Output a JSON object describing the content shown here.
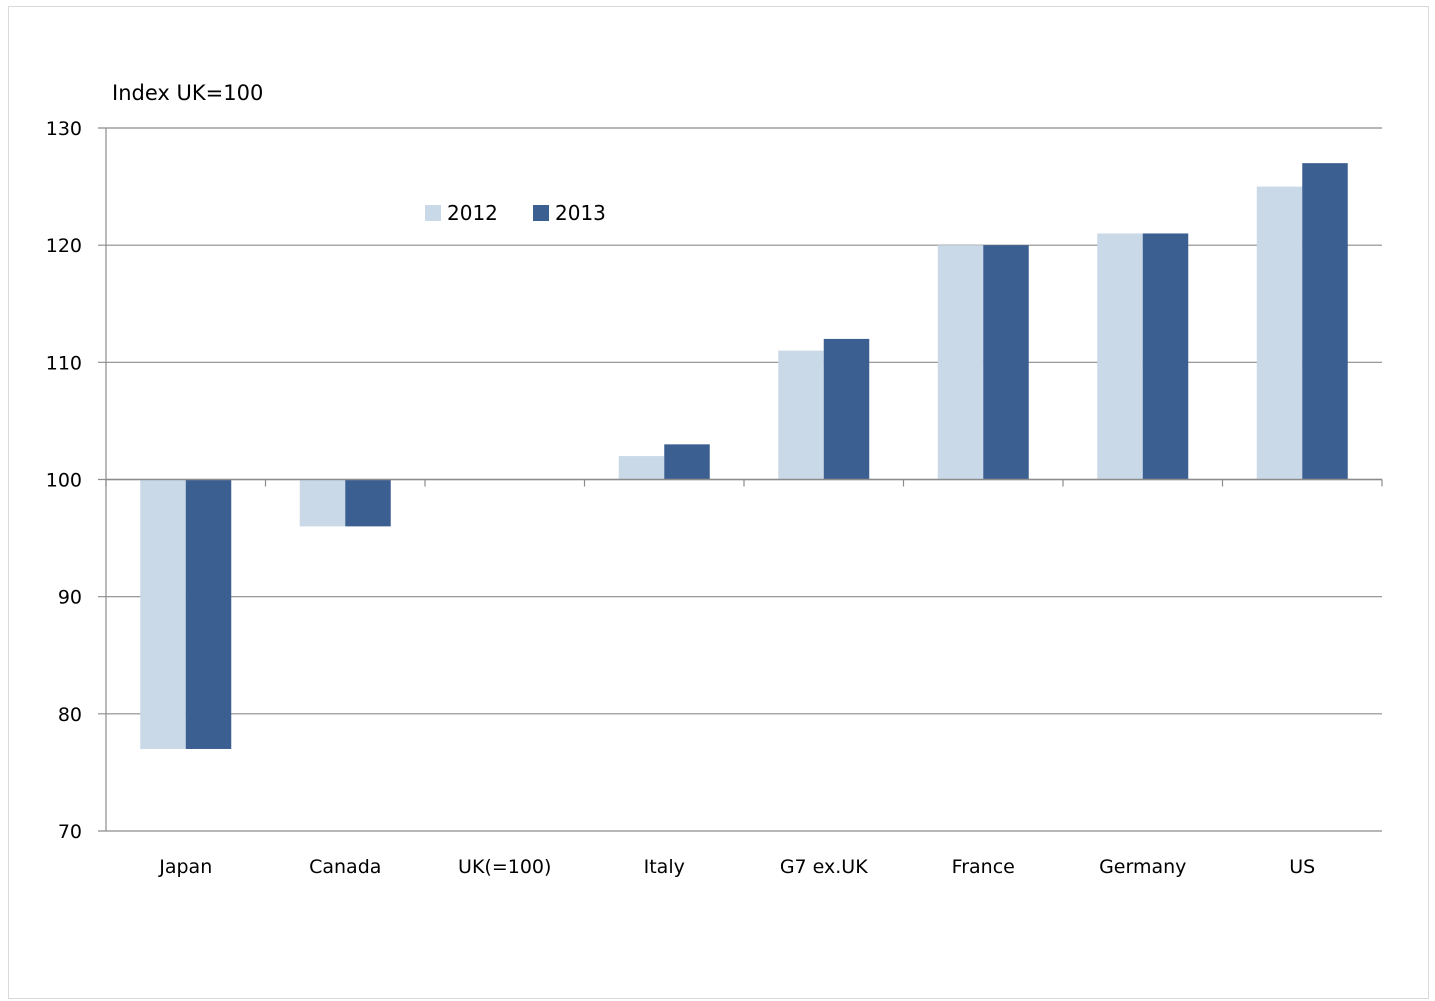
{
  "chart_data": {
    "type": "bar",
    "title": "",
    "ylabel": "Index UK=100",
    "xlabel": "",
    "baseline": 100,
    "ylim": [
      70,
      130
    ],
    "yticks": [
      70,
      80,
      90,
      100,
      110,
      120,
      130
    ],
    "grid": true,
    "legend_position": "top-left",
    "categories": [
      "Japan",
      "Canada",
      "UK(=100)",
      "Italy",
      "G7 ex.UK",
      "France",
      "Germany",
      "US"
    ],
    "series": [
      {
        "name": "2012",
        "color": "#c9d9e8",
        "values": [
          77,
          96,
          100,
          102,
          111,
          120,
          121,
          125
        ]
      },
      {
        "name": "2013",
        "color": "#3c5f91",
        "values": [
          77,
          96,
          100,
          103,
          112,
          120,
          121,
          127
        ]
      }
    ]
  }
}
